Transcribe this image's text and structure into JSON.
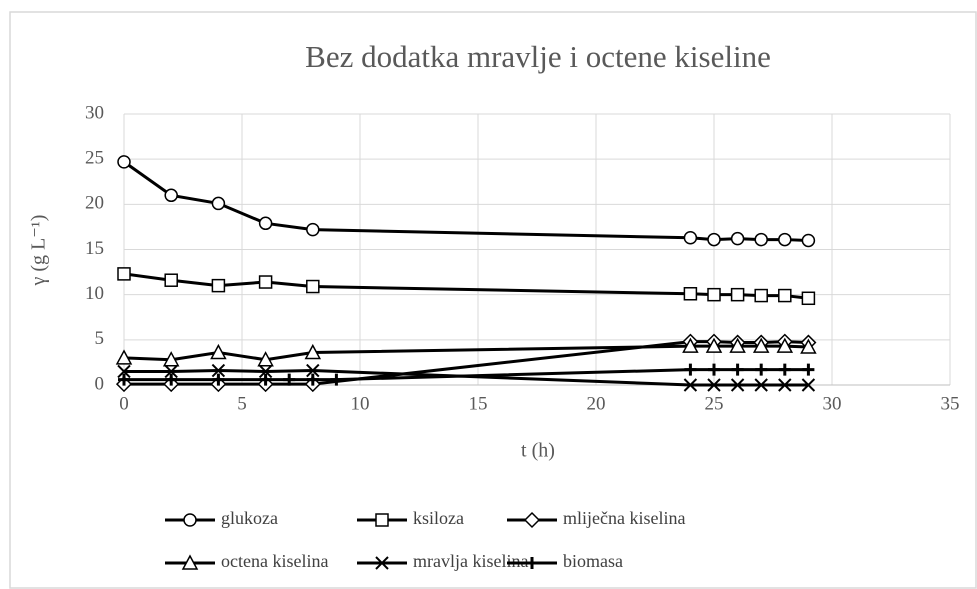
{
  "chart_data": {
    "type": "line",
    "title": "Bez dodatka mravlje i octene kiseline",
    "xlabel": "t (h)",
    "ylabel": "γ (g L⁻¹)",
    "x": [
      0,
      2,
      4,
      6,
      8,
      24,
      25,
      26,
      27,
      28,
      29
    ],
    "xlim": [
      0,
      35
    ],
    "xticks": [
      0,
      5,
      10,
      15,
      20,
      25,
      30,
      35
    ],
    "ylim": [
      0,
      30
    ],
    "yticks": [
      0,
      5,
      10,
      15,
      20,
      25,
      30
    ],
    "grid": true,
    "legend": "bottom",
    "series": [
      {
        "name": "glukoza",
        "color": "#000000",
        "marker": "circle",
        "values": [
          24.7,
          21.0,
          20.1,
          17.9,
          17.2,
          16.3,
          16.1,
          16.2,
          16.1,
          16.1,
          16.0
        ]
      },
      {
        "name": "ksiloza",
        "color": "#000000",
        "marker": "square",
        "values": [
          12.3,
          11.6,
          11.0,
          11.4,
          10.9,
          10.1,
          10.0,
          10.0,
          9.9,
          9.9,
          9.6
        ]
      },
      {
        "name": "mliječna kiselina",
        "color": "#000000",
        "marker": "diamond",
        "values": [
          0.1,
          0.1,
          0.1,
          0.1,
          0.1,
          4.8,
          4.8,
          4.7,
          4.7,
          4.8,
          4.7
        ]
      },
      {
        "name": "octena kiselina",
        "color": "#000000",
        "marker": "triangle",
        "values": [
          3.0,
          2.8,
          3.6,
          2.8,
          3.6,
          4.3,
          4.3,
          4.3,
          4.3,
          4.3,
          4.2
        ]
      },
      {
        "name": "mravlja kiselina",
        "color": "#000000",
        "marker": "x",
        "values": [
          1.5,
          1.5,
          1.6,
          1.5,
          1.6,
          0,
          0,
          0,
          0,
          0,
          0
        ]
      },
      {
        "name": "biomasa",
        "color": "#000000",
        "marker": "plus",
        "x": [
          0,
          2,
          4,
          6,
          7,
          8,
          9,
          24,
          25,
          26,
          27,
          28,
          29
        ],
        "values": [
          0.6,
          0.6,
          0.6,
          0.6,
          0.6,
          0.6,
          0.6,
          1.7,
          1.7,
          1.7,
          1.7,
          1.7,
          1.7
        ]
      }
    ]
  }
}
